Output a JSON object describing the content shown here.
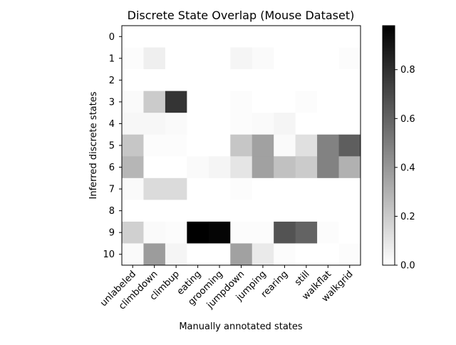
{
  "chart_data": {
    "type": "heatmap",
    "title": "Discrete State Overlap (Mouse Dataset)",
    "xlabel": "Manually annotated states",
    "ylabel": "Inferred discrete states",
    "x_categories": [
      "unlabeled",
      "climbdown",
      "climbup",
      "eating",
      "grooming",
      "jumpdown",
      "jumping",
      "rearing",
      "still",
      "walkflat",
      "walkgrid"
    ],
    "y_categories": [
      "0",
      "1",
      "2",
      "3",
      "4",
      "5",
      "6",
      "7",
      "8",
      "9",
      "10"
    ],
    "values": [
      [
        0.0,
        0.0,
        0.0,
        0.0,
        0.0,
        0.0,
        0.0,
        0.0,
        0.0,
        0.0,
        0.0
      ],
      [
        0.01,
        0.06,
        0.0,
        0.0,
        0.0,
        0.04,
        0.02,
        0.0,
        0.0,
        0.0,
        0.01
      ],
      [
        0.0,
        0.0,
        0.0,
        0.0,
        0.0,
        0.0,
        0.0,
        0.0,
        0.0,
        0.0,
        0.0
      ],
      [
        0.02,
        0.2,
        0.78,
        0.0,
        0.0,
        0.01,
        0.0,
        0.0,
        0.01,
        0.0,
        0.0
      ],
      [
        0.03,
        0.03,
        0.02,
        0.0,
        0.0,
        0.01,
        0.02,
        0.04,
        0.0,
        0.0,
        0.0
      ],
      [
        0.22,
        0.01,
        0.01,
        0.0,
        0.0,
        0.22,
        0.36,
        0.02,
        0.12,
        0.48,
        0.62
      ],
      [
        0.28,
        0.0,
        0.0,
        0.02,
        0.04,
        0.1,
        0.36,
        0.24,
        0.2,
        0.48,
        0.3
      ],
      [
        0.02,
        0.14,
        0.14,
        0.0,
        0.0,
        0.01,
        0.0,
        0.0,
        0.0,
        0.0,
        0.0
      ],
      [
        0.0,
        0.0,
        0.0,
        0.0,
        0.0,
        0.0,
        0.0,
        0.0,
        0.0,
        0.0,
        0.0
      ],
      [
        0.18,
        0.02,
        0.01,
        0.98,
        0.96,
        0.01,
        0.01,
        0.66,
        0.6,
        0.01,
        0.0
      ],
      [
        0.02,
        0.38,
        0.04,
        0.0,
        0.0,
        0.36,
        0.08,
        0.01,
        0.0,
        0.0,
        0.01
      ]
    ],
    "colormap": "Greys",
    "vmin": 0.0,
    "vmax": 0.98,
    "colorbar_ticks": [
      0.0,
      0.2,
      0.4,
      0.6,
      0.8
    ],
    "colorbar_tick_labels": [
      "0.0",
      "0.2",
      "0.4",
      "0.6",
      "0.8"
    ]
  }
}
